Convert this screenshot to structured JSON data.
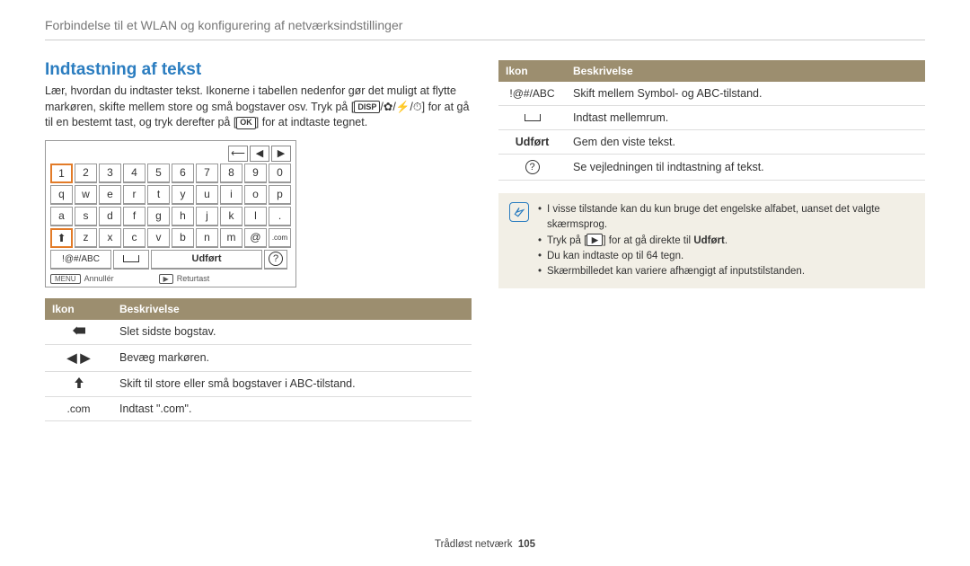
{
  "header": "Forbindelse til et WLAN og konfigurering af netværksindstillinger",
  "section_title": "Indtastning af tekst",
  "intro_part1": "Lær, hvordan du indtaster tekst. Ikonerne i tabellen nedenfor gør det muligt at flytte markøren, skifte mellem store og små bogstaver osv. Tryk på [",
  "intro_disp": "DISP",
  "intro_part2": "] for at gå til en bestemt tast, og tryk derefter på [",
  "intro_ok": "OK",
  "intro_part3": "] for at indtaste tegnet.",
  "keyboard": {
    "row1": [
      "1",
      "2",
      "3",
      "4",
      "5",
      "6",
      "7",
      "8",
      "9",
      "0"
    ],
    "row2": [
      "q",
      "w",
      "e",
      "r",
      "t",
      "y",
      "u",
      "i",
      "o",
      "p"
    ],
    "row3": [
      "a",
      "s",
      "d",
      "f",
      "g",
      "h",
      "j",
      "k",
      "l",
      "."
    ],
    "row4_prefix": "⬆",
    "row4": [
      "z",
      "x",
      "c",
      "v",
      "b",
      "n",
      "m",
      "@"
    ],
    "row4_suffix": ".com",
    "bottom": {
      "mode": "!@#/ABC",
      "done": "Udført"
    },
    "footer_cancel_key": "MENU",
    "footer_cancel": "Annullér",
    "footer_back_key": "▶",
    "footer_back": "Returtast"
  },
  "table_headers": {
    "icon": "Ikon",
    "desc": "Beskrivelse"
  },
  "left_rows": [
    {
      "icon": "back",
      "label": "",
      "desc": "Slet sidste bogstav."
    },
    {
      "icon": "lr",
      "label": "",
      "desc": "Bevæg markøren."
    },
    {
      "icon": "up",
      "label": "",
      "desc": "Skift til store eller små bogstaver i ABC-tilstand."
    },
    {
      "icon": "text",
      "label": ".com",
      "desc": "Indtast \".com\"."
    }
  ],
  "right_rows": [
    {
      "icon": "text",
      "label": "!@#/ABC",
      "desc": "Skift mellem Symbol- og ABC-tilstand."
    },
    {
      "icon": "space",
      "label": "",
      "desc": "Indtast mellemrum."
    },
    {
      "icon": "bold",
      "label": "Udført",
      "desc": "Gem den viste tekst."
    },
    {
      "icon": "help",
      "label": "?",
      "desc": "Se vejledningen til indtastning af tekst."
    }
  ],
  "note": {
    "line1": "I visse tilstande kan du kun bruge det engelske alfabet, uanset det valgte skærmsprog.",
    "line2a": "Tryk på [",
    "line2_key": "▶",
    "line2b": "] for at gå direkte til ",
    "line2_bold": "Udført",
    "line2c": ".",
    "line3": "Du kan indtaste op til 64 tegn.",
    "line4": "Skærmbilledet kan variere afhængigt af inputstilstanden."
  },
  "footer": {
    "text": "Trådløst netværk",
    "page": "105"
  },
  "colors": {
    "accent": "#2b7dc0",
    "th_bg": "#9c8e6f",
    "note_bg": "#f2efe6",
    "key_highlight": "#e27b28"
  }
}
